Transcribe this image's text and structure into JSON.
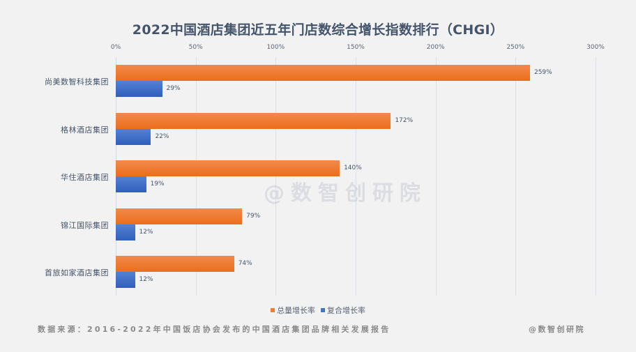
{
  "chart_data": {
    "type": "bar",
    "orientation": "horizontal",
    "title": "2022中国酒店集团近五年门店数综合增长指数排行（CHGI）",
    "xlabel": "",
    "ylabel": "",
    "xlim": [
      0,
      300
    ],
    "x_ticks": [
      "0%",
      "50%",
      "100%",
      "150%",
      "200%",
      "250%",
      "300%"
    ],
    "grid": true,
    "legend_position": "bottom",
    "categories": [
      "尚美数智科技集团",
      "格林酒店集团",
      "华住酒店集团",
      "锦江国际集团",
      "首旅如家酒店集团"
    ],
    "series": [
      {
        "name": "总量增长率",
        "color": "#ed7d31",
        "values": [
          259,
          172,
          140,
          79,
          74
        ],
        "labels": [
          "259%",
          "172%",
          "140%",
          "79%",
          "74%"
        ]
      },
      {
        "name": "复合增长率",
        "color": "#4472c4",
        "values": [
          29,
          22,
          19,
          12,
          12
        ],
        "labels": [
          "29%",
          "22%",
          "19%",
          "12%",
          "12%"
        ]
      }
    ]
  },
  "header": {
    "title": "2022中国酒店集团近五年门店数综合增长指数排行（CHGI）"
  },
  "watermark": "@数智创研院",
  "footer": {
    "source": "数据来源：2016-2022年中国饭店协会发布的中国酒店集团品牌相关发展报告",
    "brand": "@数智创研院"
  }
}
